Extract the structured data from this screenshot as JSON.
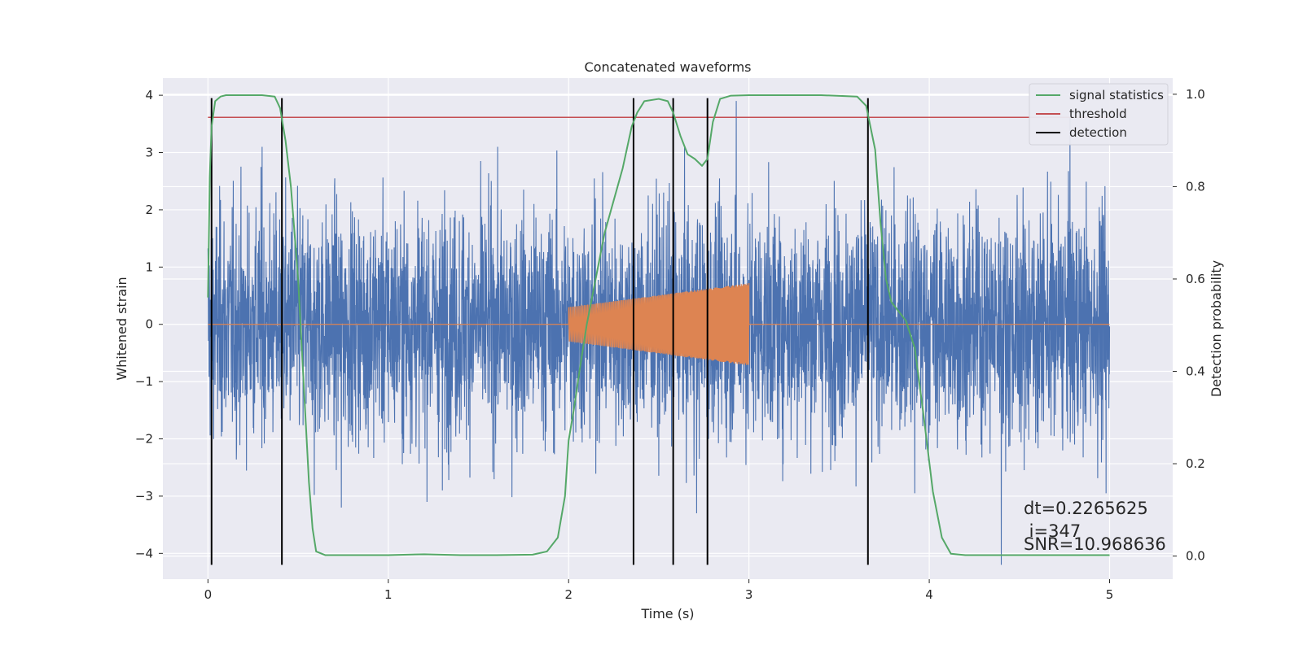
{
  "chart_data": {
    "type": "line",
    "title": "Concatenated waveforms",
    "xlabel": "Time (s)",
    "ylabel": "Whitened strain",
    "y2label": "Detection probability",
    "xlim": [
      -0.25,
      5.35
    ],
    "ylim": [
      -4.45,
      4.3
    ],
    "y2lim": [
      -0.05,
      1.035
    ],
    "x_ticks": [
      0,
      1,
      2,
      3,
      4,
      5
    ],
    "y_ticks": [
      4,
      3,
      2,
      1,
      0,
      -1,
      -2,
      -3,
      -4
    ],
    "y2_ticks": [
      1.0,
      0.8,
      0.6,
      0.4,
      0.2,
      0.0
    ],
    "x_tick_labels": [
      "0",
      "1",
      "2",
      "3",
      "4",
      "5"
    ],
    "y_tick_labels": [
      "4",
      "3",
      "2",
      "1",
      "0",
      "−1",
      "−2",
      "−3",
      "−4"
    ],
    "y2_tick_labels": [
      "1.0",
      "0.8",
      "0.6",
      "0.4",
      "0.2",
      "0.0"
    ],
    "grid": true,
    "legend_position": "top-right",
    "colors": {
      "strain": "#4c72b0",
      "template": "#dd8452",
      "signal_statistics": "#55a868",
      "threshold": "#c44e52",
      "detection": "#000000",
      "axes_bg": "#eaeaf2",
      "grid": "#ffffff"
    },
    "series": [
      {
        "name": "strain",
        "axis": "left",
        "x_range": [
          0,
          5
        ],
        "amplitude_envelope": 1.0,
        "extremes": [
          {
            "x": 0.3,
            "y": 3.1
          },
          {
            "x": 0.59,
            "y": -2.98
          },
          {
            "x": 0.74,
            "y": -3.2
          },
          {
            "x": 1.3,
            "y": -2.9
          },
          {
            "x": 2.58,
            "y": 3.2
          },
          {
            "x": 2.71,
            "y": -3.3
          },
          {
            "x": 2.93,
            "y": 3.9
          },
          {
            "x": 3.92,
            "y": -2.95
          },
          {
            "x": 4.4,
            "y": -4.2
          },
          {
            "x": 4.78,
            "y": 3.6
          },
          {
            "x": 4.98,
            "y": -2.95
          }
        ]
      },
      {
        "name": "template",
        "axis": "left",
        "x_range": [
          0,
          5
        ],
        "chirp_x_range": [
          2.0,
          3.0
        ],
        "chirp_amplitude": [
          0.3,
          0.72
        ]
      },
      {
        "name": "signal statistics",
        "axis": "right",
        "x": [
          0.0,
          0.01,
          0.02,
          0.04,
          0.07,
          0.1,
          0.2,
          0.3,
          0.37,
          0.4,
          0.43,
          0.46,
          0.5,
          0.53,
          0.56,
          0.58,
          0.6,
          0.65,
          0.8,
          1.0,
          1.2,
          1.4,
          1.6,
          1.8,
          1.88,
          1.94,
          1.98,
          2.0,
          2.03,
          2.06,
          2.1,
          2.15,
          2.2,
          2.25,
          2.3,
          2.35,
          2.38,
          2.42,
          2.5,
          2.55,
          2.58,
          2.62,
          2.66,
          2.7,
          2.74,
          2.77,
          2.8,
          2.84,
          2.9,
          3.0,
          3.2,
          3.4,
          3.6,
          3.65,
          3.7,
          3.73,
          3.76,
          3.79,
          3.83,
          3.87,
          3.92,
          3.97,
          4.02,
          4.07,
          4.12,
          4.2,
          4.5,
          5.0
        ],
        "values": [
          0.56,
          0.82,
          0.93,
          0.985,
          0.995,
          0.998,
          0.998,
          0.998,
          0.995,
          0.97,
          0.9,
          0.8,
          0.6,
          0.38,
          0.16,
          0.06,
          0.01,
          0.002,
          0.002,
          0.002,
          0.004,
          0.002,
          0.002,
          0.003,
          0.01,
          0.04,
          0.13,
          0.25,
          0.32,
          0.4,
          0.5,
          0.6,
          0.7,
          0.77,
          0.84,
          0.93,
          0.96,
          0.985,
          0.99,
          0.985,
          0.96,
          0.91,
          0.87,
          0.86,
          0.845,
          0.86,
          0.94,
          0.99,
          0.997,
          0.998,
          0.998,
          0.998,
          0.995,
          0.975,
          0.88,
          0.72,
          0.6,
          0.55,
          0.53,
          0.51,
          0.45,
          0.3,
          0.14,
          0.04,
          0.005,
          0.002,
          0.002,
          0.002
        ]
      },
      {
        "name": "threshold",
        "axis": "right",
        "x": [
          0,
          5
        ],
        "values": [
          0.95,
          0.95
        ]
      },
      {
        "name": "detection",
        "axis": "left",
        "vertical_lines_x": [
          0.02,
          0.41,
          2.36,
          2.58,
          2.77,
          3.66
        ],
        "y_range": [
          -4.2,
          3.95
        ]
      }
    ],
    "legend": [
      "signal statistics",
      "threshold",
      "detection"
    ],
    "annotations": [
      "dt=0.2265625",
      " i=347",
      "SNR=10.968636"
    ]
  }
}
